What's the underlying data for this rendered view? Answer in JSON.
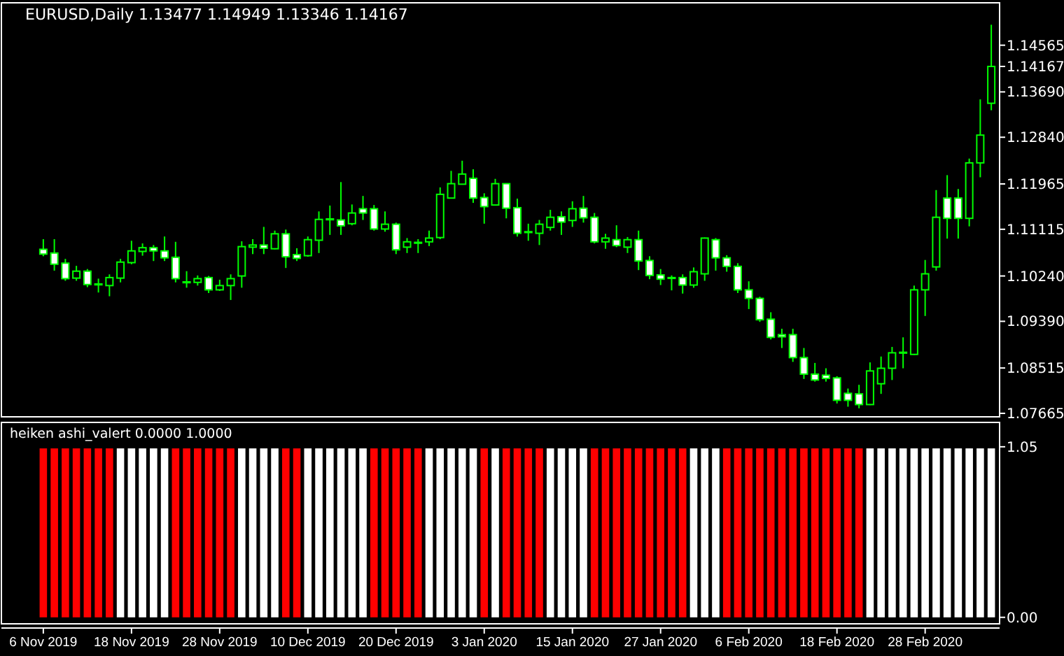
{
  "chart_data": [
    {
      "type": "candlestick",
      "title": "EURUSD,Daily  1.13477 1.14949 1.13346 1.14167",
      "color": "#00ff00",
      "ylim": [
        1.076,
        1.1536
      ],
      "yticks": [
        1.07665,
        1.08515,
        {
          "value": 1.0939,
          "label": "1.09390"
        },
        {
          "value": 1.1024,
          "label": "1.10240"
        },
        1.11115,
        1.11965,
        {
          "value": 1.1284,
          "label": "1.12840"
        },
        {
          "value": 1.1369,
          "label": "1.13690"
        },
        1.14167,
        1.14565
      ],
      "tick_labels": "y",
      "categories": [
        null,
        null,
        null,
        null,
        null,
        null,
        null,
        null,
        null,
        null,
        null,
        null,
        null,
        null,
        null,
        null,
        null,
        null,
        null,
        null,
        null,
        null,
        null,
        null,
        null,
        null,
        null,
        null,
        null,
        null,
        null,
        null,
        null,
        null,
        null,
        null,
        null,
        null,
        null,
        null,
        null,
        null,
        null,
        null,
        null,
        null,
        null,
        null,
        null,
        null,
        null,
        null,
        null,
        null,
        null,
        null,
        null,
        null,
        null,
        null,
        null,
        null,
        null,
        null,
        null,
        null,
        null,
        null,
        null,
        null,
        null,
        null,
        null,
        null,
        null,
        null,
        null,
        null,
        null,
        null,
        null,
        null,
        null,
        null,
        null,
        null,
        null
      ],
      "ohlc": [
        [
          1.1074,
          1.1093,
          1.1061,
          1.1065
        ],
        [
          1.1067,
          1.1093,
          1.1034,
          1.1046
        ],
        [
          1.1048,
          1.1056,
          1.1015,
          1.1019
        ],
        [
          1.102,
          1.1043,
          1.1015,
          1.1033
        ],
        [
          1.1033,
          1.1037,
          1.1003,
          1.1008
        ],
        [
          1.1008,
          1.1019,
          1.0993,
          1.1009
        ],
        [
          1.1006,
          1.1027,
          1.0986,
          1.1021
        ],
        [
          1.102,
          1.1056,
          1.1012,
          1.105
        ],
        [
          1.1049,
          1.109,
          1.1046,
          1.1071
        ],
        [
          1.107,
          1.1085,
          1.1062,
          1.1077
        ],
        [
          1.1077,
          1.1082,
          1.1052,
          1.1071
        ],
        [
          1.1071,
          1.1098,
          1.1052,
          1.1058
        ],
        [
          1.1059,
          1.1088,
          1.1012,
          1.1019
        ],
        [
          1.1013,
          1.1033,
          1.1002,
          1.1013
        ],
        [
          1.1012,
          1.1025,
          1.1006,
          1.1019
        ],
        [
          1.1021,
          1.1024,
          1.0992,
          1.0998
        ],
        [
          1.0998,
          1.1017,
          1.0996,
          1.1006
        ],
        [
          1.1006,
          1.1027,
          1.0979,
          1.1019
        ],
        [
          1.1024,
          1.1089,
          1.1002,
          1.1079
        ],
        [
          1.1078,
          1.1093,
          1.1065,
          1.1082
        ],
        [
          1.1082,
          1.1116,
          1.1065,
          1.1076
        ],
        [
          1.1075,
          1.1109,
          1.1074,
          1.1103
        ],
        [
          1.1103,
          1.1111,
          1.1039,
          1.106
        ],
        [
          1.1064,
          1.1076,
          1.1052,
          1.1057
        ],
        [
          1.1062,
          1.1098,
          1.106,
          1.1092
        ],
        [
          1.1091,
          1.1145,
          1.1067,
          1.113
        ],
        [
          1.113,
          1.1156,
          1.1101,
          1.1131
        ],
        [
          1.1129,
          1.12,
          1.1101,
          1.1118
        ],
        [
          1.1122,
          1.1158,
          1.1119,
          1.1142
        ],
        [
          1.115,
          1.1174,
          1.1129,
          1.1142
        ],
        [
          1.115,
          1.1157,
          1.1109,
          1.1112
        ],
        [
          1.1112,
          1.1145,
          1.1107,
          1.1121
        ],
        [
          1.1121,
          1.1124,
          1.1065,
          1.1073
        ],
        [
          1.1078,
          1.1095,
          1.1067,
          1.1088
        ],
        [
          1.1086,
          1.1093,
          1.1067,
          1.1087
        ],
        [
          1.1088,
          1.1109,
          1.108,
          1.1095
        ],
        [
          1.1096,
          1.119,
          1.1093,
          1.1177
        ],
        [
          1.117,
          1.1221,
          1.117,
          1.1197
        ],
        [
          1.1196,
          1.124,
          1.1196,
          1.1215
        ],
        [
          1.1207,
          1.1224,
          1.1161,
          1.117
        ],
        [
          1.1171,
          1.1179,
          1.1122,
          1.1154
        ],
        [
          1.1157,
          1.1206,
          1.1157,
          1.1197
        ],
        [
          1.1197,
          1.1197,
          1.1132,
          1.1151
        ],
        [
          1.1152,
          1.1169,
          1.1098,
          1.1104
        ],
        [
          1.1106,
          1.1122,
          1.109,
          1.1107
        ],
        [
          1.1104,
          1.1129,
          1.1082,
          1.1121
        ],
        [
          1.1115,
          1.1148,
          1.1109,
          1.1134
        ],
        [
          1.1135,
          1.1145,
          1.1101,
          1.1125
        ],
        [
          1.1128,
          1.1164,
          1.1116,
          1.115
        ],
        [
          1.1151,
          1.1174,
          1.1124,
          1.1133
        ],
        [
          1.1134,
          1.1142,
          1.1085,
          1.1088
        ],
        [
          1.1088,
          1.1103,
          1.1075,
          1.1095
        ],
        [
          1.1092,
          1.1119,
          1.1078,
          1.1081
        ],
        [
          1.1078,
          1.1097,
          1.1067,
          1.1092
        ],
        [
          1.1092,
          1.1109,
          1.1035,
          1.1052
        ],
        [
          1.1053,
          1.1061,
          1.1018,
          1.1025
        ],
        [
          1.1026,
          1.1037,
          1.1007,
          1.1018
        ],
        [
          1.102,
          1.1025,
          1.0997,
          1.1021
        ],
        [
          1.1021,
          1.1027,
          1.0991,
          1.1007
        ],
        [
          1.1007,
          1.104,
          1.1002,
          1.1032
        ],
        [
          1.1028,
          1.1096,
          1.1015,
          1.1095
        ],
        [
          1.1092,
          1.1095,
          1.1034,
          1.1058
        ],
        [
          1.1058,
          1.1063,
          1.1032,
          1.1042
        ],
        [
          1.1042,
          1.1048,
          1.0992,
          1.0998
        ],
        [
          1.0998,
          1.1014,
          1.0962,
          1.0982
        ],
        [
          1.0982,
          1.0985,
          1.0938,
          1.0942
        ],
        [
          1.0943,
          1.0956,
          1.0905,
          1.0909
        ],
        [
          1.0914,
          1.0925,
          1.0889,
          1.091
        ],
        [
          1.0914,
          1.0925,
          1.0863,
          1.0871
        ],
        [
          1.0871,
          1.0889,
          1.0831,
          1.084
        ],
        [
          1.084,
          1.0861,
          1.0826,
          1.0829
        ],
        [
          1.0838,
          1.0851,
          1.0826,
          1.0832
        ],
        [
          1.0833,
          1.0836,
          1.0785,
          1.0791
        ],
        [
          1.0804,
          1.0813,
          1.0779,
          1.0791
        ],
        [
          1.0803,
          1.082,
          1.0776,
          1.0783
        ],
        [
          1.0783,
          1.0862,
          1.0782,
          1.0846
        ],
        [
          1.0822,
          1.0873,
          1.0803,
          1.0851
        ],
        [
          1.0851,
          1.0891,
          1.0829,
          1.088
        ],
        [
          1.088,
          1.0909,
          1.0851,
          1.0881
        ],
        [
          1.0877,
          1.1006,
          1.0876,
          1.0998
        ],
        [
          1.0998,
          1.1054,
          1.0949,
          1.1028
        ],
        [
          1.1041,
          1.1185,
          1.1034,
          1.1134
        ],
        [
          1.117,
          1.1213,
          1.1094,
          1.1132
        ],
        [
          1.117,
          1.1187,
          1.1094,
          1.1132
        ],
        [
          1.1132,
          1.1244,
          1.1117,
          1.1236
        ],
        [
          1.1236,
          1.1355,
          1.1209,
          1.1288
        ],
        [
          1.13477,
          1.14949,
          1.13346,
          1.14167
        ]
      ]
    },
    {
      "type": "bar",
      "title": "heiken ashi_valert 0.0000 1.0000",
      "ylim": [
        -0.04,
        1.2
      ],
      "yticks": [
        {
          "value": 0,
          "label": "0.00"
        },
        1.05
      ],
      "categories": [
        "6 Nov 2019",
        null,
        null,
        null,
        null,
        null,
        null,
        null,
        "18 Nov 2019",
        null,
        null,
        null,
        null,
        null,
        null,
        null,
        "28 Nov 2019",
        null,
        null,
        null,
        null,
        null,
        null,
        null,
        "10 Dec 2019",
        null,
        null,
        null,
        null,
        null,
        null,
        null,
        "20 Dec 2019",
        null,
        null,
        null,
        null,
        null,
        null,
        null,
        "3 Jan 2020",
        null,
        null,
        null,
        null,
        null,
        null,
        null,
        "15 Jan 2020",
        null,
        null,
        null,
        null,
        null,
        null,
        null,
        "27 Jan 2020",
        null,
        null,
        null,
        null,
        null,
        null,
        null,
        "6 Feb 2020",
        null,
        null,
        null,
        null,
        null,
        null,
        null,
        "18 Feb 2020",
        null,
        null,
        null,
        null,
        null,
        null,
        null,
        "28 Feb 2020",
        null,
        null,
        null,
        null,
        null,
        null
      ],
      "values": [
        1.04,
        1.04,
        1.04,
        1.04,
        1.04,
        1.04,
        1.04,
        1.04,
        1.04,
        1.04,
        1.04,
        1.04,
        1.04,
        1.04,
        1.04,
        1.04,
        1.04,
        1.04,
        1.04,
        1.04,
        1.04,
        1.04,
        1.04,
        1.04,
        1.04,
        1.04,
        1.04,
        1.04,
        1.04,
        1.04,
        1.04,
        1.04,
        1.04,
        1.04,
        1.04,
        1.04,
        1.04,
        1.04,
        1.04,
        1.04,
        1.04,
        1.04,
        1.04,
        1.04,
        1.04,
        1.04,
        1.04,
        1.04,
        1.04,
        1.04,
        1.04,
        1.04,
        1.04,
        1.04,
        1.04,
        1.04,
        1.04,
        1.04,
        1.04,
        1.04,
        1.04,
        1.04,
        1.04,
        1.04,
        1.04,
        1.04,
        1.04,
        1.04,
        1.04,
        1.04,
        1.04,
        1.04,
        1.04,
        1.04,
        1.04,
        1.04,
        1.04,
        1.04,
        1.04,
        1.04,
        1.04,
        1.04,
        1.04,
        1.04,
        1.04,
        1.04,
        1.04
      ],
      "colors": [
        "#ff0000",
        "#ff0000",
        "#ff0000",
        "#ff0000",
        "#ff0000",
        "#ff0000",
        "#ff0000",
        "#ffffff",
        "#ffffff",
        "#ffffff",
        "#ffffff",
        "#ffffff",
        "#ff0000",
        "#ff0000",
        "#ff0000",
        "#ff0000",
        "#ff0000",
        "#ff0000",
        "#ffffff",
        "#ffffff",
        "#ffffff",
        "#ffffff",
        "#ff0000",
        "#ff0000",
        "#ffffff",
        "#ffffff",
        "#ffffff",
        "#ffffff",
        "#ffffff",
        "#ffffff",
        "#ff0000",
        "#ff0000",
        "#ff0000",
        "#ff0000",
        "#ff0000",
        "#ffffff",
        "#ffffff",
        "#ffffff",
        "#ffffff",
        "#ffffff",
        "#ff0000",
        "#ffffff",
        "#ff0000",
        "#ff0000",
        "#ff0000",
        "#ff0000",
        "#ffffff",
        "#ffffff",
        "#ffffff",
        "#ffffff",
        "#ff0000",
        "#ff0000",
        "#ff0000",
        "#ff0000",
        "#ff0000",
        "#ff0000",
        "#ff0000",
        "#ff0000",
        "#ff0000",
        "#ffffff",
        "#ffffff",
        "#ffffff",
        "#ff0000",
        "#ff0000",
        "#ff0000",
        "#ff0000",
        "#ff0000",
        "#ff0000",
        "#ff0000",
        "#ff0000",
        "#ff0000",
        "#ff0000",
        "#ff0000",
        "#ff0000",
        "#ff0000",
        "#ffffff",
        "#ffffff",
        "#ffffff",
        "#ffffff",
        "#ffffff",
        "#ffffff",
        "#ffffff",
        "#ffffff",
        "#ffffff",
        "#ffffff",
        "#ffffff",
        "#ffffff"
      ]
    }
  ]
}
